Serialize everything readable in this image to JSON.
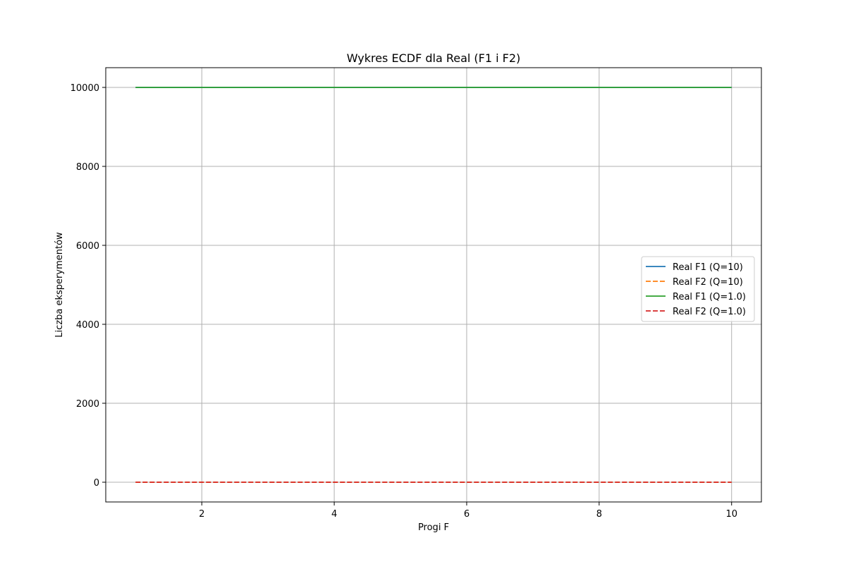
{
  "chart_data": {
    "type": "line",
    "title": "Wykres ECDF dla Real (F1 i F2)",
    "xlabel": "Progi F",
    "ylabel": "Liczba eksperymentów",
    "xlim": [
      0.55,
      10.45
    ],
    "ylim": [
      -500,
      10500
    ],
    "xticks": [
      2,
      4,
      6,
      8,
      10
    ],
    "yticks": [
      0,
      2000,
      4000,
      6000,
      8000,
      10000
    ],
    "xtick_labels": [
      "2",
      "4",
      "6",
      "8",
      "10"
    ],
    "ytick_labels": [
      "0",
      "2000",
      "4000",
      "6000",
      "8000",
      "10000"
    ],
    "grid": true,
    "legend_position": "center-right",
    "series": [
      {
        "name": "Real F1 (Q=10)",
        "color": "#1f77b4",
        "linestyle": "solid",
        "x": [
          1,
          2,
          3,
          4,
          5,
          6,
          7,
          8,
          9,
          10
        ],
        "y": [
          10000,
          10000,
          10000,
          10000,
          10000,
          10000,
          10000,
          10000,
          10000,
          10000
        ]
      },
      {
        "name": "Real F2 (Q=10)",
        "color": "#ff7f0e",
        "linestyle": "dashed",
        "x": [
          1,
          2,
          3,
          4,
          5,
          6,
          7,
          8,
          9,
          10
        ],
        "y": [
          0,
          0,
          0,
          0,
          0,
          0,
          0,
          0,
          0,
          0
        ]
      },
      {
        "name": "Real F1 (Q=1.0)",
        "color": "#2ca02c",
        "linestyle": "solid",
        "x": [
          1,
          2,
          3,
          4,
          5,
          6,
          7,
          8,
          9,
          10
        ],
        "y": [
          10000,
          10000,
          10000,
          10000,
          10000,
          10000,
          10000,
          10000,
          10000,
          10000
        ]
      },
      {
        "name": "Real F2 (Q=1.0)",
        "color": "#d62728",
        "linestyle": "dashed",
        "x": [
          1,
          2,
          3,
          4,
          5,
          6,
          7,
          8,
          9,
          10
        ],
        "y": [
          0,
          0,
          0,
          0,
          0,
          0,
          0,
          0,
          0,
          0
        ]
      }
    ]
  }
}
